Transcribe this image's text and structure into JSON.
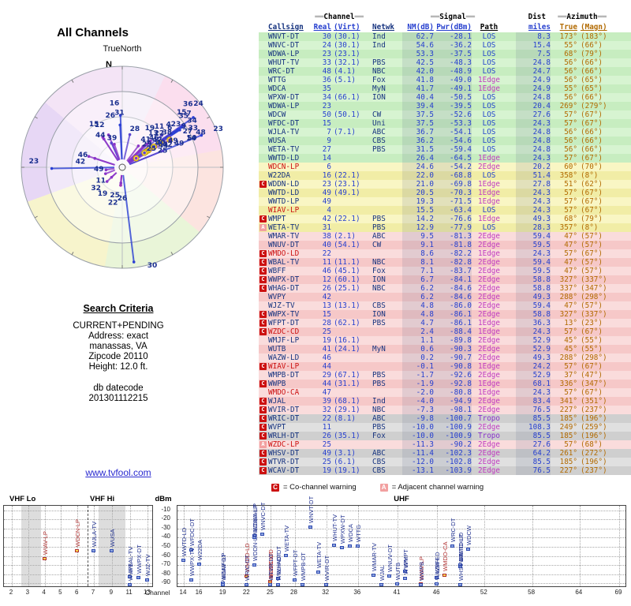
{
  "left": {
    "title": "All Channels",
    "true_north": "TrueNorth",
    "north": "N",
    "search_criteria": {
      "heading": "Search Criteria",
      "lines": [
        "CURRENT+PENDING",
        "Address: exact",
        "manassas, VA",
        "Zipcode 20110",
        "Height: 12.0 ft."
      ],
      "datecode_label": "db datecode",
      "datecode": "201301112215"
    },
    "link": "www.tvfool.com"
  },
  "table": {
    "header": {
      "decor": "══",
      "group_channel": "Channel",
      "group_signal": "Signal",
      "group_dist": "Dist",
      "group_azimuth": "Azimuth",
      "callsign": "Callsign",
      "real": "Real",
      "virt": "(Virt)",
      "netwk": "Netwk",
      "nm": "NM(dB)",
      "pwr": "Pwr(dBm)",
      "path": "Path",
      "miles": "miles",
      "true": "True",
      "magn": "(Magn)"
    },
    "rows": [
      {
        "callsign": "WNVT-DT",
        "real": 30,
        "virt": "(30.1)",
        "netwk": "Ind",
        "nm": 62.7,
        "pwr": -28.1,
        "path": "LOS",
        "miles": 8.3,
        "true_az": 173,
        "magn_az": 183,
        "band": "green",
        "flag": "",
        "red": false
      },
      {
        "callsign": "WNVC-DT",
        "real": 24,
        "virt": "(30.1)",
        "netwk": "Ind",
        "nm": 54.6,
        "pwr": -36.2,
        "path": "LOS",
        "miles": 15.4,
        "true_az": 55,
        "magn_az": 66,
        "band": "green",
        "flag": "",
        "red": false
      },
      {
        "callsign": "WDWA-LP",
        "real": 23,
        "virt": "(23.1)",
        "netwk": "",
        "nm": 53.3,
        "pwr": -37.5,
        "path": "LOS",
        "miles": 7.5,
        "true_az": 68,
        "magn_az": 79,
        "band": "green",
        "flag": "",
        "red": false
      },
      {
        "callsign": "WHUT-TV",
        "real": 33,
        "virt": "(32.1)",
        "netwk": "PBS",
        "nm": 42.5,
        "pwr": -48.3,
        "path": "LOS",
        "miles": 24.8,
        "true_az": 56,
        "magn_az": 66,
        "band": "green",
        "flag": "",
        "red": false
      },
      {
        "callsign": "WRC-DT",
        "real": 48,
        "virt": "(4.1)",
        "netwk": "NBC",
        "nm": 42.0,
        "pwr": -48.9,
        "path": "LOS",
        "miles": 24.7,
        "true_az": 56,
        "magn_az": 66,
        "band": "green",
        "flag": "",
        "red": false
      },
      {
        "callsign": "WTTG",
        "real": 36,
        "virt": "(5.1)",
        "netwk": "Fox",
        "nm": 41.8,
        "pwr": -49.0,
        "path": "1Edge",
        "miles": 24.9,
        "true_az": 56,
        "magn_az": 65,
        "band": "green",
        "flag": "",
        "red": false
      },
      {
        "callsign": "WDCA",
        "real": 35,
        "virt": "",
        "netwk": "MyN",
        "nm": 41.7,
        "pwr": -49.1,
        "path": "1Edge",
        "miles": 24.9,
        "true_az": 55,
        "magn_az": 65,
        "band": "green",
        "flag": "",
        "red": false
      },
      {
        "callsign": "WPXW-DT",
        "real": 34,
        "virt": "(66.1)",
        "netwk": "ION",
        "nm": 40.4,
        "pwr": -50.5,
        "path": "LOS",
        "miles": 24.8,
        "true_az": 56,
        "magn_az": 66,
        "band": "green",
        "flag": "",
        "red": false
      },
      {
        "callsign": "WDWA-LP",
        "real": 23,
        "virt": "",
        "netwk": "",
        "nm": 39.4,
        "pwr": -39.5,
        "path": "LOS",
        "miles": 20.4,
        "true_az": 269,
        "magn_az": 279,
        "band": "green",
        "flag": "",
        "red": false
      },
      {
        "callsign": "WDCW",
        "real": 50,
        "virt": "(50.1)",
        "netwk": "CW",
        "nm": 37.5,
        "pwr": -52.6,
        "path": "LOS",
        "miles": 27.6,
        "true_az": 57,
        "magn_az": 67,
        "band": "green",
        "flag": "",
        "red": false
      },
      {
        "callsign": "WFDC-DT",
        "real": 15,
        "virt": "",
        "netwk": "Uni",
        "nm": 37.5,
        "pwr": -53.3,
        "path": "LOS",
        "miles": 24.3,
        "true_az": 57,
        "magn_az": 67,
        "band": "green",
        "flag": "",
        "red": false
      },
      {
        "callsign": "WJLA-TV",
        "real": 7,
        "virt": "(7.1)",
        "netwk": "ABC",
        "nm": 36.7,
        "pwr": -54.1,
        "path": "LOS",
        "miles": 24.8,
        "true_az": 56,
        "magn_az": 66,
        "band": "green",
        "flag": "",
        "red": false
      },
      {
        "callsign": "WUSA",
        "real": 9,
        "virt": "",
        "netwk": "CBS",
        "nm": 36.2,
        "pwr": -54.6,
        "path": "LOS",
        "miles": 24.8,
        "true_az": 56,
        "magn_az": 66,
        "band": "green",
        "flag": "",
        "red": false
      },
      {
        "callsign": "WETA-TV",
        "real": 27,
        "virt": "",
        "netwk": "PBS",
        "nm": 31.5,
        "pwr": -59.4,
        "path": "LOS",
        "miles": 24.8,
        "true_az": 56,
        "magn_az": 66,
        "band": "green",
        "flag": "",
        "red": false
      },
      {
        "callsign": "WWTD-LD",
        "real": 14,
        "virt": "",
        "netwk": "",
        "nm": 26.4,
        "pwr": -64.5,
        "path": "1Edge",
        "miles": 24.3,
        "true_az": 57,
        "magn_az": 67,
        "band": "green",
        "flag": "",
        "red": false
      },
      {
        "callsign": "WDCN-LP",
        "real": 6,
        "virt": "",
        "netwk": "",
        "nm": 24.6,
        "pwr": -54.2,
        "path": "2Edge",
        "miles": 20.2,
        "true_az": 60,
        "magn_az": 70,
        "band": "yellow",
        "flag": "",
        "red": true
      },
      {
        "callsign": "W22DA",
        "real": 16,
        "virt": "(22.1)",
        "netwk": "",
        "nm": 22.0,
        "pwr": -68.8,
        "path": "LOS",
        "miles": 51.4,
        "true_az": 358,
        "magn_az": 8,
        "band": "yellow",
        "flag": "",
        "red": false
      },
      {
        "callsign": "WDDN-LD",
        "real": 23,
        "virt": "(23.1)",
        "netwk": "",
        "nm": 21.0,
        "pwr": -69.8,
        "path": "1Edge",
        "miles": 27.8,
        "true_az": 51,
        "magn_az": 62,
        "band": "yellow",
        "flag": "C",
        "red": false
      },
      {
        "callsign": "WWTD-LD",
        "real": 49,
        "virt": "(49.1)",
        "netwk": "",
        "nm": 20.5,
        "pwr": -70.3,
        "path": "1Edge",
        "miles": 24.3,
        "true_az": 57,
        "magn_az": 67,
        "band": "yellow",
        "flag": "",
        "red": false
      },
      {
        "callsign": "WWTD-LP",
        "real": 49,
        "virt": "",
        "netwk": "",
        "nm": 19.3,
        "pwr": -71.5,
        "path": "1Edge",
        "miles": 24.3,
        "true_az": 57,
        "magn_az": 67,
        "band": "yellow",
        "flag": "",
        "red": false
      },
      {
        "callsign": "WIAV-LP",
        "real": 4,
        "virt": "",
        "netwk": "",
        "nm": 15.5,
        "pwr": -63.4,
        "path": "LOS",
        "miles": 24.3,
        "true_az": 57,
        "magn_az": 67,
        "band": "yellow",
        "flag": "",
        "red": true
      },
      {
        "callsign": "WMPT",
        "real": 42,
        "virt": "(22.1)",
        "netwk": "PBS",
        "nm": 14.2,
        "pwr": -76.6,
        "path": "1Edge",
        "miles": 49.3,
        "true_az": 68,
        "magn_az": 79,
        "band": "yellow",
        "flag": "C",
        "red": false
      },
      {
        "callsign": "WETA-TV",
        "real": 31,
        "virt": "",
        "netwk": "PBS",
        "nm": 12.9,
        "pwr": -77.9,
        "path": "LOS",
        "miles": 28.3,
        "true_az": 357,
        "magn_az": 8,
        "band": "yellow",
        "flag": "A",
        "red": false
      },
      {
        "callsign": "WMAR-TV",
        "real": 38,
        "virt": "(2.1)",
        "netwk": "ABC",
        "nm": 9.5,
        "pwr": -81.3,
        "path": "2Edge",
        "miles": 59.4,
        "true_az": 47,
        "magn_az": 57,
        "band": "pink",
        "flag": "",
        "red": false
      },
      {
        "callsign": "WNUV-DT",
        "real": 40,
        "virt": "(54.1)",
        "netwk": "CW",
        "nm": 9.1,
        "pwr": -81.8,
        "path": "2Edge",
        "miles": 59.5,
        "true_az": 47,
        "magn_az": 57,
        "band": "pink",
        "flag": "",
        "red": false
      },
      {
        "callsign": "WMDO-LD",
        "real": 22,
        "virt": "",
        "netwk": "",
        "nm": 8.6,
        "pwr": -82.2,
        "path": "1Edge",
        "miles": 24.3,
        "true_az": 57,
        "magn_az": 67,
        "band": "pink",
        "flag": "C",
        "red": true
      },
      {
        "callsign": "WBAL-TV",
        "real": 11,
        "virt": "(11.1)",
        "netwk": "NBC",
        "nm": 8.1,
        "pwr": -82.8,
        "path": "2Edge",
        "miles": 59.4,
        "true_az": 47,
        "magn_az": 57,
        "band": "pink",
        "flag": "C",
        "red": false
      },
      {
        "callsign": "WBFF",
        "real": 46,
        "virt": "(45.1)",
        "netwk": "Fox",
        "nm": 7.1,
        "pwr": -83.7,
        "path": "2Edge",
        "miles": 59.5,
        "true_az": 47,
        "magn_az": 57,
        "band": "pink",
        "flag": "C",
        "red": false
      },
      {
        "callsign": "WWPX-DT",
        "real": 12,
        "virt": "(60.1)",
        "netwk": "ION",
        "nm": 6.7,
        "pwr": -84.1,
        "path": "2Edge",
        "miles": 58.8,
        "true_az": 327,
        "magn_az": 337,
        "band": "pink",
        "flag": "C",
        "red": false
      },
      {
        "callsign": "WHAG-DT",
        "real": 26,
        "virt": "(25.1)",
        "netwk": "NBC",
        "nm": 6.2,
        "pwr": -84.6,
        "path": "2Edge",
        "miles": 58.8,
        "true_az": 337,
        "magn_az": 347,
        "band": "pink",
        "flag": "C",
        "red": false
      },
      {
        "callsign": "WVPY",
        "real": 42,
        "virt": "",
        "netwk": "",
        "nm": 6.2,
        "pwr": -84.6,
        "path": "2Edge",
        "miles": 49.3,
        "true_az": 288,
        "magn_az": 298,
        "band": "pink",
        "flag": "",
        "red": false
      },
      {
        "callsign": "WJZ-TV",
        "real": 13,
        "virt": "(13.1)",
        "netwk": "CBS",
        "nm": 4.8,
        "pwr": -86.0,
        "path": "2Edge",
        "miles": 59.4,
        "true_az": 47,
        "magn_az": 57,
        "band": "pink",
        "flag": "",
        "red": false
      },
      {
        "callsign": "WWPX-TV",
        "real": 15,
        "virt": "",
        "netwk": "ION",
        "nm": 4.8,
        "pwr": -86.1,
        "path": "2Edge",
        "miles": 58.8,
        "true_az": 327,
        "magn_az": 337,
        "band": "pink",
        "flag": "C",
        "red": false
      },
      {
        "callsign": "WFPT-DT",
        "real": 28,
        "virt": "(62.1)",
        "netwk": "PBS",
        "nm": 4.7,
        "pwr": -86.1,
        "path": "1Edge",
        "miles": 36.3,
        "true_az": 13,
        "magn_az": 23,
        "band": "pink",
        "flag": "C",
        "red": false
      },
      {
        "callsign": "WZDC-CD",
        "real": 25,
        "virt": "",
        "netwk": "",
        "nm": 2.4,
        "pwr": -88.4,
        "path": "1Edge",
        "miles": 24.3,
        "true_az": 57,
        "magn_az": 67,
        "band": "pink",
        "flag": "C",
        "red": true
      },
      {
        "callsign": "WMJF-LP",
        "real": 19,
        "virt": "(16.1)",
        "netwk": "",
        "nm": 1.1,
        "pwr": -89.8,
        "path": "2Edge",
        "miles": 52.9,
        "true_az": 45,
        "magn_az": 55,
        "band": "pink",
        "flag": "",
        "red": false
      },
      {
        "callsign": "WUTB",
        "real": 41,
        "virt": "(24.1)",
        "netwk": "MyN",
        "nm": 0.6,
        "pwr": -90.3,
        "path": "2Edge",
        "miles": 52.9,
        "true_az": 45,
        "magn_az": 55,
        "band": "pink",
        "flag": "",
        "red": false
      },
      {
        "callsign": "WAZW-LD",
        "real": 46,
        "virt": "",
        "netwk": "",
        "nm": 0.2,
        "pwr": -90.7,
        "path": "2Edge",
        "miles": 49.3,
        "true_az": 288,
        "magn_az": 298,
        "band": "pink",
        "flag": "",
        "red": false
      },
      {
        "callsign": "WIAV-LP",
        "real": 44,
        "virt": "",
        "netwk": "",
        "nm": -0.1,
        "pwr": -90.8,
        "path": "1Edge",
        "miles": 24.2,
        "true_az": 57,
        "magn_az": 67,
        "band": "pink",
        "flag": "C",
        "red": true
      },
      {
        "callsign": "WMPB-DT",
        "real": 29,
        "virt": "(67.1)",
        "netwk": "PBS",
        "nm": -1.7,
        "pwr": -92.6,
        "path": "2Edge",
        "miles": 52.9,
        "true_az": 37,
        "magn_az": 47,
        "band": "pink",
        "flag": "",
        "red": false
      },
      {
        "callsign": "WWPB",
        "real": 44,
        "virt": "(31.1)",
        "netwk": "PBS",
        "nm": -1.9,
        "pwr": -92.8,
        "path": "1Edge",
        "miles": 68.1,
        "true_az": 336,
        "magn_az": 347,
        "band": "pink",
        "flag": "C",
        "red": false
      },
      {
        "callsign": "WMDO-CA",
        "real": 47,
        "virt": "",
        "netwk": "",
        "nm": -2.0,
        "pwr": -80.8,
        "path": "1Edge",
        "miles": 24.3,
        "true_az": 57,
        "magn_az": 67,
        "band": "pink",
        "flag": "",
        "red": true
      },
      {
        "callsign": "WJAL",
        "real": 39,
        "virt": "(68.1)",
        "netwk": "Ind",
        "nm": -4.0,
        "pwr": -94.9,
        "path": "2Edge",
        "miles": 83.4,
        "true_az": 341,
        "magn_az": 351,
        "band": "pink",
        "flag": "C",
        "red": false
      },
      {
        "callsign": "WVIR-DT",
        "real": 32,
        "virt": "(29.1)",
        "netwk": "NBC",
        "nm": -7.3,
        "pwr": -98.1,
        "path": "2Edge",
        "miles": 76.5,
        "true_az": 227,
        "magn_az": 237,
        "band": "pink",
        "flag": "C",
        "red": false
      },
      {
        "callsign": "WRIC-DT",
        "real": 22,
        "virt": "(8.1)",
        "netwk": "ABC",
        "nm": -9.8,
        "pwr": -100.7,
        "path": "Tropo",
        "miles": 85.5,
        "true_az": 185,
        "magn_az": 196,
        "band": "gray",
        "flag": "C",
        "red": false
      },
      {
        "callsign": "WVPT",
        "real": 11,
        "virt": "",
        "netwk": "PBS",
        "nm": -10.0,
        "pwr": -100.9,
        "path": "2Edge",
        "miles": 108.3,
        "true_az": 249,
        "magn_az": 259,
        "band": "gray",
        "flag": "C",
        "red": false
      },
      {
        "callsign": "WRLH-DT",
        "real": 26,
        "virt": "(35.1)",
        "netwk": "Fox",
        "nm": -10.0,
        "pwr": -100.9,
        "path": "Tropo",
        "miles": 85.5,
        "true_az": 185,
        "magn_az": 196,
        "band": "gray",
        "flag": "C",
        "red": false
      },
      {
        "callsign": "WZDC-LP",
        "real": 25,
        "virt": "",
        "netwk": "",
        "nm": -11.3,
        "pwr": -90.2,
        "path": "2Edge",
        "miles": 27.6,
        "true_az": 57,
        "magn_az": 68,
        "band": "pink",
        "flag": "A",
        "red": true
      },
      {
        "callsign": "WHSV-DT",
        "real": 49,
        "virt": "(3.1)",
        "netwk": "ABC",
        "nm": -11.4,
        "pwr": -102.3,
        "path": "2Edge",
        "miles": 64.2,
        "true_az": 261,
        "magn_az": 272,
        "band": "gray",
        "flag": "C",
        "red": false
      },
      {
        "callsign": "WTVR-DT",
        "real": 25,
        "virt": "(6.1)",
        "netwk": "CBS",
        "nm": -12.0,
        "pwr": -102.8,
        "path": "2Edge",
        "miles": 85.5,
        "true_az": 185,
        "magn_az": 196,
        "band": "gray",
        "flag": "C",
        "red": false
      },
      {
        "callsign": "WCAV-DT",
        "real": 19,
        "virt": "(19.1)",
        "netwk": "CBS",
        "nm": -13.1,
        "pwr": -103.9,
        "path": "2Edge",
        "miles": 76.5,
        "true_az": 227,
        "magn_az": 237,
        "band": "gray",
        "flag": "C",
        "red": false
      }
    ]
  },
  "legend": {
    "c_symbol": "C",
    "c_text": "= Co-channel warning",
    "a_symbol": "A",
    "a_text": "= Adjacent channel warning"
  },
  "bottom_chart": {
    "ylabel": "dBm",
    "yticks": [
      -10,
      -20,
      -30,
      -40,
      -50,
      -60,
      -70,
      -80,
      -90
    ],
    "vhf_lo_label": "VHF Lo",
    "vhf_hi_label": "VHF Hi",
    "uhf_label": "UHF",
    "channel_label": "Channel",
    "vhf_ticks": [
      2,
      3,
      4,
      5,
      6,
      7,
      9,
      11,
      13
    ],
    "uhf_ticks": [
      14,
      16,
      19,
      22,
      25,
      28,
      32,
      36,
      41,
      46,
      52,
      58,
      64,
      69
    ]
  },
  "colors": {
    "callsign_navy": "#16337f",
    "value_blue": "#2740cf",
    "azimuth_orange": "#b26a00",
    "warning_red": "#cc1111",
    "warning_pink": "#f2a0a0",
    "link_blue": "#2a2ad0",
    "row_green": "#c7edc0",
    "row_yellow": "#f1eda6",
    "row_pink": "#f6c8c8",
    "row_gray": "#cfcfcf"
  }
}
